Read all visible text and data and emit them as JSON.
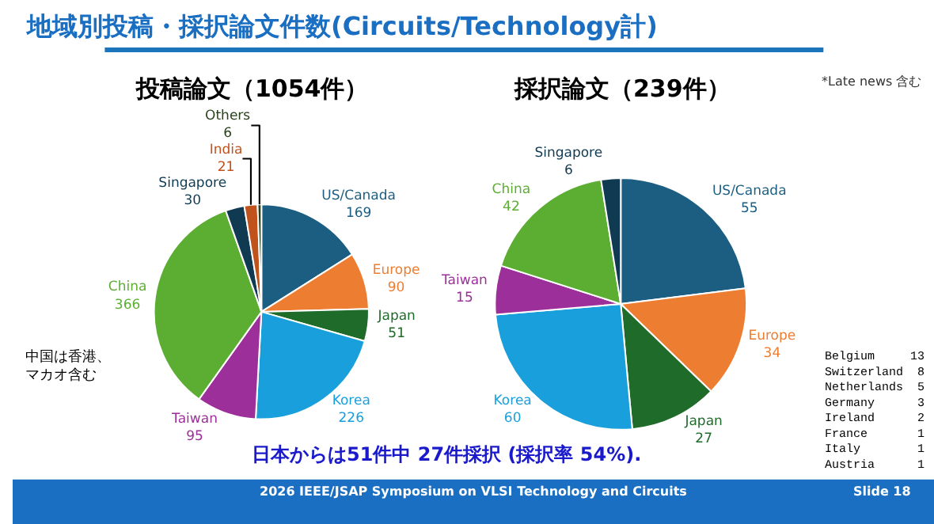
{
  "chart_data": [
    {
      "type": "pie",
      "title": "投稿論文（1054件）",
      "categories": [
        "US/Canada",
        "Europe",
        "Japan",
        "Korea",
        "Taiwan",
        "China",
        "Singapore",
        "India",
        "Others"
      ],
      "values": [
        169,
        90,
        51,
        226,
        95,
        366,
        30,
        21,
        6
      ],
      "colors": [
        "#1b5e82",
        "#ed7d31",
        "#1e6b2a",
        "#19a0dc",
        "#9c2f9a",
        "#5bae32",
        "#0f3a52",
        "#c0521e",
        "#27401a"
      ],
      "data_labels": true,
      "annotations": [
        "地域別投稿・採択論文件数(Circuits/Technology計)",
        "中国は香港、マカオ含む",
        "日本からは51件中 27件採択 (採択率 54%).",
        "2026 IEEE/JSAP Symposium on VLSI Technology and Circuits"
      ]
    },
    {
      "type": "pie",
      "title": "採択論文（239件）",
      "categories": [
        "US/Canada",
        "Europe",
        "Japan",
        "Korea",
        "Taiwan",
        "China",
        "Singapore"
      ],
      "values": [
        55,
        34,
        27,
        60,
        15,
        42,
        6
      ],
      "colors": [
        "#1b5e82",
        "#ed7d31",
        "#1e6b2a",
        "#19a0dc",
        "#9c2f9a",
        "#5bae32",
        "#0f3a52"
      ],
      "data_labels": true,
      "annotations": [
        "*Late news 含む",
        "Belgium 13\nSwitzerland 8\nNetherlands 5\nGermany 3\nIreland 2\nFrance 1\nItaly 1\nAustria 1",
        "Slide 18"
      ]
    }
  ]
}
